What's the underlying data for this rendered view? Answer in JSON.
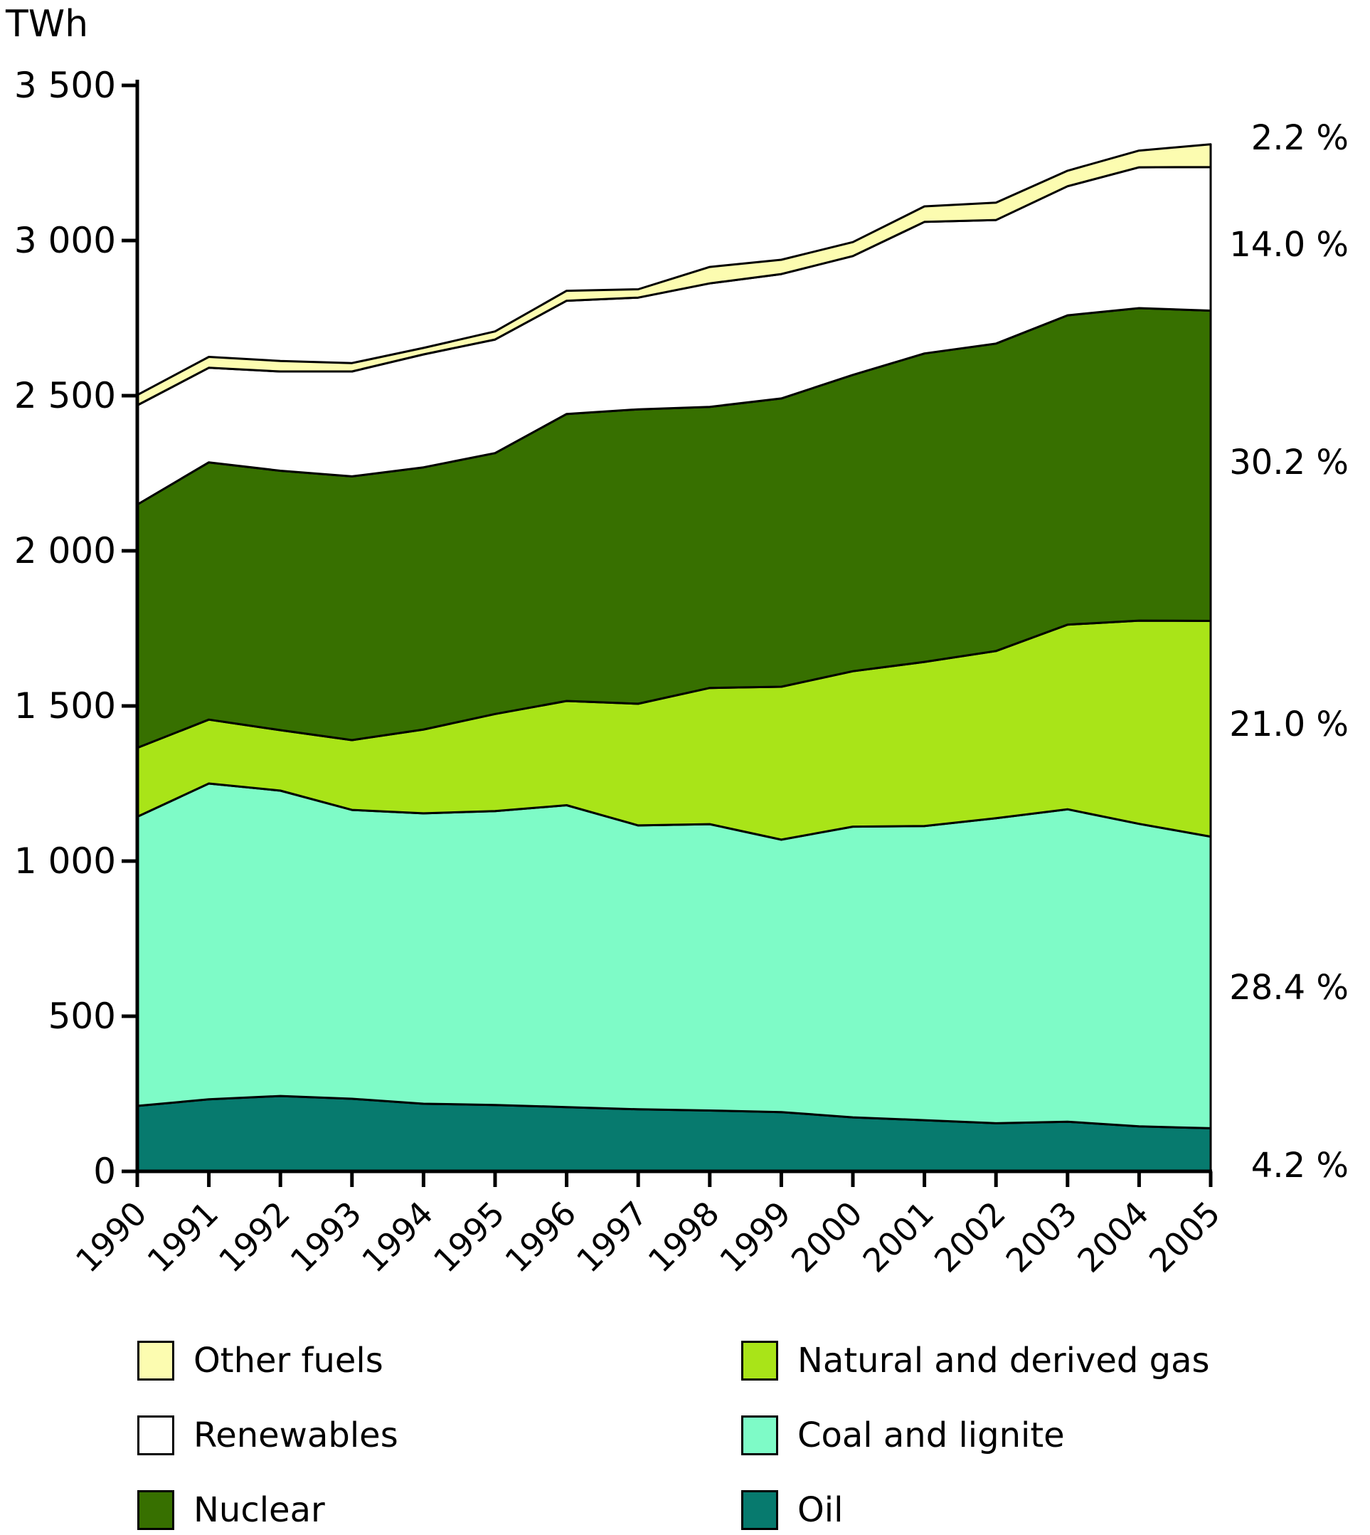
{
  "chart_data": {
    "type": "area",
    "stacked": true,
    "title": "",
    "ylabel": "TWh",
    "xlabel": "",
    "ylim": [
      0,
      3500
    ],
    "grid": false,
    "legend_position": "bottom",
    "x": [
      1990,
      1991,
      1992,
      1993,
      1994,
      1995,
      1996,
      1997,
      1998,
      1999,
      2000,
      2001,
      2002,
      2003,
      2004,
      2005
    ],
    "y_ticks": [
      {
        "value": 0,
        "label": "0"
      },
      {
        "value": 500,
        "label": "500"
      },
      {
        "value": 1000,
        "label": "1 000"
      },
      {
        "value": 1500,
        "label": "1 500"
      },
      {
        "value": 2000,
        "label": "2 000"
      },
      {
        "value": 2500,
        "label": "2 500"
      },
      {
        "value": 3000,
        "label": "3 000"
      },
      {
        "value": 3500,
        "label": "3 500"
      }
    ],
    "series": [
      {
        "name": "Oil",
        "color": "#077a6e",
        "pct_label": "4.2 %",
        "values": [
          211,
          232,
          243,
          234,
          218,
          214,
          207,
          200,
          196,
          191,
          174,
          165,
          155,
          160,
          145,
          139
        ]
      },
      {
        "name": "Coal and lignite",
        "color": "#7efbc7",
        "pct_label": "28.4 %",
        "values": [
          932,
          1018,
          984,
          931,
          936,
          947,
          973,
          915,
          923,
          878,
          937,
          948,
          983,
          1007,
          975,
          940
        ]
      },
      {
        "name": "Natural and derived gas",
        "color": "#a9e418",
        "pct_label": "21.0 %",
        "values": [
          222,
          206,
          195,
          225,
          270,
          313,
          336,
          392,
          439,
          493,
          501,
          529,
          539,
          595,
          655,
          695
        ]
      },
      {
        "name": "Nuclear",
        "color": "#377000",
        "pct_label": "30.2 %",
        "values": [
          784,
          829,
          836,
          850,
          845,
          841,
          925,
          949,
          906,
          929,
          955,
          994,
          991,
          997,
          1007,
          1000
        ]
      },
      {
        "name": "Renewables",
        "color": "#ffffff",
        "pct_label": "14.0 %",
        "values": [
          320,
          305,
          320,
          338,
          364,
          366,
          365,
          360,
          398,
          401,
          383,
          424,
          398,
          416,
          454,
          463
        ]
      },
      {
        "name": "Other fuels",
        "color": "#fcfcb0",
        "pct_label": "2.2 %",
        "values": [
          33,
          35,
          34,
          27,
          21,
          26,
          32,
          27,
          53,
          46,
          45,
          50,
          56,
          50,
          54,
          73
        ]
      }
    ]
  }
}
